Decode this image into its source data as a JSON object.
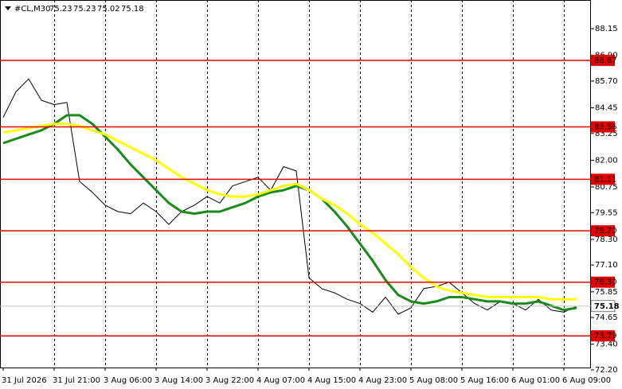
{
  "chart_data": {
    "type": "line",
    "title": "#CL,M30",
    "header_values": [
      75.23,
      75.23,
      75.02,
      75.18
    ],
    "categories": [
      "31 Jul 2026",
      null,
      null,
      null,
      "31 Jul 21:00",
      null,
      null,
      null,
      "3 Aug 06:00",
      null,
      null,
      null,
      "3 Aug 14:00",
      null,
      null,
      null,
      "3 Aug 22:00",
      null,
      null,
      null,
      "4 Aug 07:00",
      null,
      null,
      null,
      "4 Aug 15:00",
      null,
      null,
      null,
      "4 Aug 23:00",
      null,
      null,
      null,
      "5 Aug 08:00",
      null,
      null,
      null,
      "5 Aug 16:00",
      null,
      null,
      null,
      "6 Aug 01:00",
      null,
      null,
      null,
      "6 Aug 09:00",
      null
    ],
    "series": [
      {
        "color": "#000000",
        "width": 1,
        "values": [
          84.0,
          85.2,
          85.8,
          84.8,
          84.6,
          84.7,
          81.0,
          80.5,
          79.9,
          79.6,
          79.5,
          80.0,
          79.6,
          79.0,
          79.6,
          79.9,
          80.3,
          80.0,
          80.8,
          81.0,
          81.2,
          80.6,
          81.7,
          81.5,
          76.5,
          76.0,
          75.8,
          75.5,
          75.3,
          74.9,
          75.6,
          74.8,
          75.1,
          76.0,
          76.1,
          76.3,
          75.8,
          75.3,
          75.0,
          75.4,
          75.3,
          75.0,
          75.5,
          75.0,
          74.9,
          75.18
        ]
      },
      {
        "color": "#1a8a1a",
        "width": 3,
        "values": [
          82.8,
          83.0,
          83.2,
          83.4,
          83.7,
          84.1,
          84.1,
          83.7,
          83.1,
          82.5,
          81.8,
          81.2,
          80.6,
          80.0,
          79.6,
          79.5,
          79.6,
          79.6,
          79.8,
          80.0,
          80.3,
          80.5,
          80.6,
          80.8,
          80.6,
          80.2,
          79.6,
          78.9,
          78.1,
          77.3,
          76.4,
          75.7,
          75.4,
          75.3,
          75.4,
          75.6,
          75.6,
          75.5,
          75.4,
          75.4,
          75.3,
          75.3,
          75.4,
          75.2,
          75.0,
          75.1
        ]
      },
      {
        "color": "#ffff00",
        "width": 3,
        "values": [
          83.3,
          83.4,
          83.5,
          83.6,
          83.7,
          83.7,
          83.6,
          83.4,
          83.2,
          82.9,
          82.6,
          82.3,
          82.0,
          81.6,
          81.2,
          80.9,
          80.6,
          80.4,
          80.3,
          80.3,
          80.4,
          80.6,
          80.8,
          80.9,
          80.6,
          80.2,
          79.9,
          79.5,
          79.0,
          78.6,
          78.1,
          77.6,
          77.0,
          76.5,
          76.1,
          75.9,
          75.8,
          75.7,
          75.6,
          75.6,
          75.6,
          75.6,
          75.6,
          75.5,
          75.5,
          75.5
        ]
      }
    ],
    "levels": [
      86.67,
      83.56,
      81.11,
      78.7,
      76.3,
      73.79
    ],
    "level_labels": [
      "86.67",
      "83.56",
      "81.11",
      "78.70",
      "76.30",
      "73.79"
    ],
    "level_color": "#e00000",
    "last_price": 75.18,
    "ylim": [
      72.31,
      89.49
    ],
    "yticks": [
      88.15,
      {
        "value": 86.9,
        "label": "86.90"
      },
      {
        "value": 85.7,
        "label": "85.70"
      },
      84.45,
      83.25,
      {
        "value": 82,
        "label": "82.00"
      },
      80.75,
      79.55,
      {
        "value": 78.3,
        "label": "78.30"
      },
      {
        "value": 77.1,
        "label": "77.10"
      },
      75.85,
      74.65,
      {
        "value": 73.4,
        "label": "73.40"
      },
      {
        "value": 72.2,
        "label": "72.20"
      }
    ],
    "grid": true
  }
}
